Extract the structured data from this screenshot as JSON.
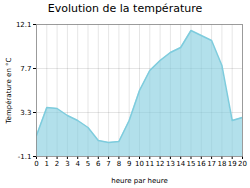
{
  "chart_data": {
    "type": "area",
    "title": "Evolution de la température",
    "xlabel": "heure par heure",
    "ylabel": "Température en °C",
    "x": [
      0,
      1,
      2,
      3,
      4,
      5,
      6,
      7,
      8,
      9,
      10,
      11,
      12,
      13,
      14,
      15,
      16,
      17,
      18,
      19,
      20
    ],
    "values": [
      1.0,
      3.8,
      3.7,
      3.0,
      2.5,
      1.8,
      0.5,
      0.3,
      0.4,
      2.5,
      5.5,
      7.5,
      8.5,
      9.3,
      9.8,
      11.5,
      11.0,
      10.5,
      8.0,
      2.5,
      2.8
    ],
    "xlim": [
      0,
      20
    ],
    "xticks": [
      0,
      1,
      2,
      3,
      4,
      5,
      6,
      7,
      8,
      9,
      10,
      11,
      12,
      13,
      14,
      15,
      16,
      17,
      18,
      19,
      20
    ],
    "ylim": [
      -1.1,
      12.1
    ],
    "yticks": [
      -1.1,
      3.3,
      7.7,
      12.1
    ],
    "color": "#7eccdd",
    "grid": true
  }
}
